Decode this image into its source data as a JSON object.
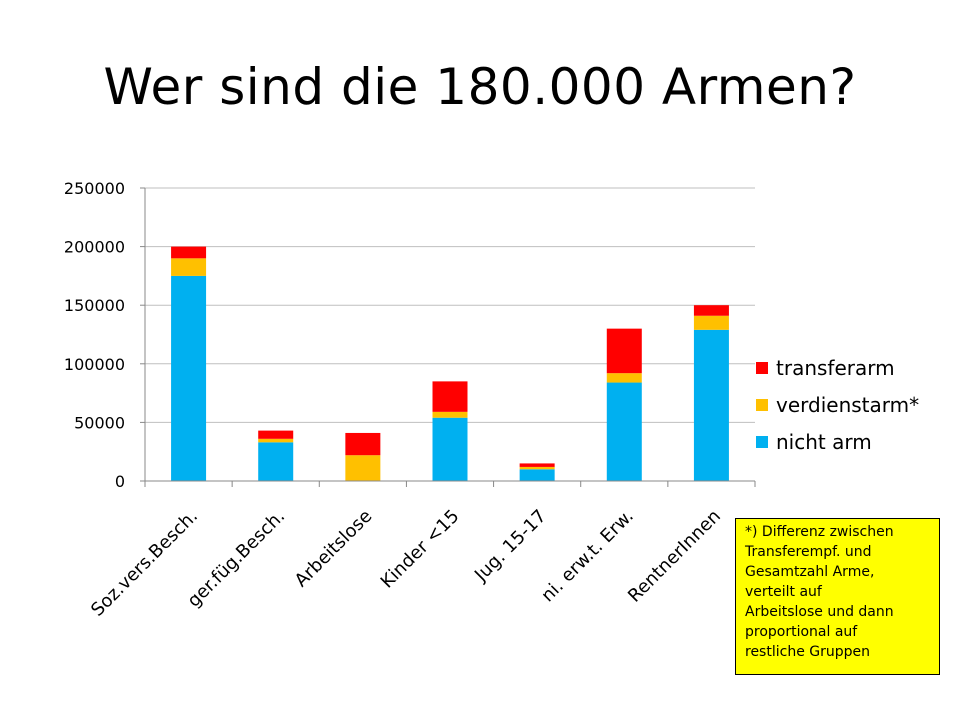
{
  "slide": {
    "title": "Wer sind die 180.000 Armen?"
  },
  "note": "*) Differenz zwischen\nTransferempf. und\nGesamtzahl Arme,\nverteilt auf\nArbeitslose und dann\nproportional auf\nrestliche Gruppen",
  "chart_data": {
    "type": "bar",
    "stacked": true,
    "title": "",
    "xlabel": "",
    "ylabel": "",
    "ylim": [
      0,
      250000
    ],
    "yticks": [
      0,
      50000,
      100000,
      150000,
      200000,
      250000
    ],
    "ytick_labels": [
      "0",
      "50000",
      "100000",
      "150000",
      "200000",
      "250000"
    ],
    "grid": true,
    "legend_position": "right",
    "categories": [
      "Soz.vers.Besch.",
      "ger.füg.Besch.",
      "Arbeitslose",
      "Kinder <15",
      "Jug. 15-17",
      "ni. erw.t. Erw.",
      "RentnerInnen"
    ],
    "series": [
      {
        "name": "nicht arm",
        "color": "#00b0f0",
        "values": [
          175000,
          33000,
          0,
          54000,
          10000,
          84000,
          129000
        ]
      },
      {
        "name": "verdienstarm*",
        "color": "#ffc000",
        "values": [
          15000,
          3000,
          22000,
          5000,
          2000,
          8000,
          12000
        ]
      },
      {
        "name": "transferarm",
        "color": "#ff0000",
        "values": [
          10000,
          7000,
          19000,
          26000,
          3000,
          38000,
          9000
        ]
      }
    ],
    "legend_order": [
      "transferarm",
      "verdienstarm*",
      "nicht arm"
    ]
  }
}
